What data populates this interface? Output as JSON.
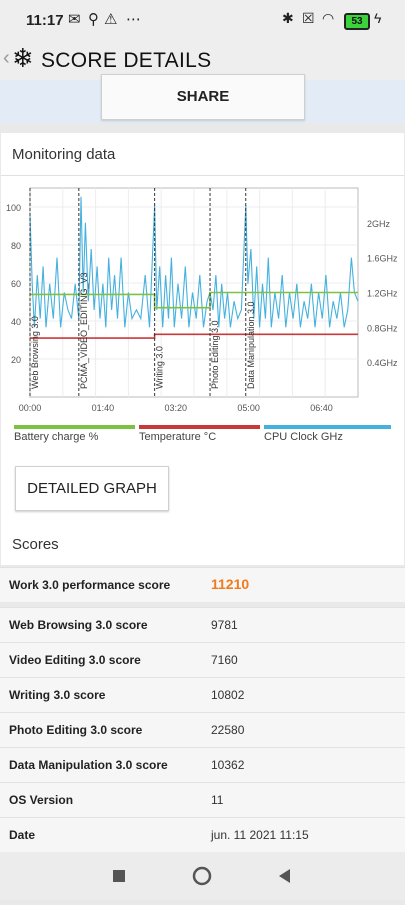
{
  "status_bar": {
    "time": "11:17",
    "battery": "53"
  },
  "app_bar": {
    "title": "SCORE DETAILS"
  },
  "share_label": "SHARE",
  "monitoring": {
    "title": "Monitoring data",
    "detailed_graph_label": "DETAILED GRAPH"
  },
  "chart_data": {
    "type": "line",
    "x_ticks": [
      "00:00",
      "01:40",
      "03:20",
      "05:00",
      "06:40"
    ],
    "y_left_ticks": [
      "100",
      "80",
      "60",
      "40",
      "20"
    ],
    "y_right_ticks": [
      "2GHz",
      "1.6GHz",
      "1.2GHz",
      "0.8GHz",
      "0.4GHz"
    ],
    "ylim_left": [
      0,
      110
    ],
    "ylim_right": [
      0,
      2.4
    ],
    "phase_markers": [
      {
        "label": "Web Browsing 3.0",
        "t": 0
      },
      {
        "label": "PCMA_VIDEO_EDITING_V3",
        "t": 67
      },
      {
        "label": "Writing 3.0",
        "t": 171
      },
      {
        "label": "Photo Editing 3.0",
        "t": 247
      },
      {
        "label": "Data Manipulation 3.0",
        "t": 296
      }
    ],
    "legend": [
      {
        "name": "Battery charge %",
        "color": "#7cc242"
      },
      {
        "name": "Temperature °C",
        "color": "#c83a3a"
      },
      {
        "name": "CPU Clock GHz",
        "color": "#45b1de"
      }
    ],
    "series": [
      {
        "name": "Battery charge %",
        "axis": "left",
        "points": [
          [
            0,
            54
          ],
          [
            171,
            54
          ],
          [
            171,
            47
          ],
          [
            247,
            47
          ],
          [
            247,
            55
          ],
          [
            450,
            55
          ]
        ]
      },
      {
        "name": "Temperature °C",
        "axis": "left",
        "points": [
          [
            0,
            31
          ],
          [
            171,
            31
          ],
          [
            171,
            33
          ],
          [
            450,
            33
          ]
        ]
      },
      {
        "name": "CPU Clock GHz",
        "axis": "right",
        "points": [
          [
            0,
            2.1
          ],
          [
            3,
            1.3
          ],
          [
            6,
            0.8
          ],
          [
            10,
            1.4
          ],
          [
            14,
            0.9
          ],
          [
            18,
            1.5
          ],
          [
            22,
            0.8
          ],
          [
            27,
            1.3
          ],
          [
            32,
            0.9
          ],
          [
            37,
            1.6
          ],
          [
            42,
            0.8
          ],
          [
            47,
            1.2
          ],
          [
            52,
            1.0
          ],
          [
            57,
            0.9
          ],
          [
            62,
            1.3
          ],
          [
            67,
            0.9
          ],
          [
            70,
            2.3
          ],
          [
            73,
            1.2
          ],
          [
            76,
            2.0
          ],
          [
            80,
            1.1
          ],
          [
            84,
            1.7
          ],
          [
            88,
            1.0
          ],
          [
            92,
            1.5
          ],
          [
            96,
            0.9
          ],
          [
            100,
            1.3
          ],
          [
            104,
            0.8
          ],
          [
            108,
            1.6
          ],
          [
            112,
            1.0
          ],
          [
            116,
            1.4
          ],
          [
            120,
            0.9
          ],
          [
            125,
            1.6
          ],
          [
            130,
            0.8
          ],
          [
            135,
            1.2
          ],
          [
            140,
            0.9
          ],
          [
            146,
            1.0
          ],
          [
            152,
            0.9
          ],
          [
            158,
            1.4
          ],
          [
            164,
            0.8
          ],
          [
            171,
            2.2
          ],
          [
            174,
            1.0
          ],
          [
            178,
            1.5
          ],
          [
            182,
            0.8
          ],
          [
            186,
            1.4
          ],
          [
            190,
            0.9
          ],
          [
            194,
            1.6
          ],
          [
            198,
            0.8
          ],
          [
            203,
            1.3
          ],
          [
            208,
            0.9
          ],
          [
            213,
            1.5
          ],
          [
            218,
            0.8
          ],
          [
            223,
            1.2
          ],
          [
            228,
            0.9
          ],
          [
            233,
            1.4
          ],
          [
            238,
            0.8
          ],
          [
            243,
            1.1
          ],
          [
            247,
            1.2
          ],
          [
            251,
            1.0
          ],
          [
            255,
            1.4
          ],
          [
            259,
            0.8
          ],
          [
            263,
            1.3
          ],
          [
            267,
            0.9
          ],
          [
            271,
            1.2
          ],
          [
            275,
            0.8
          ],
          [
            280,
            1.1
          ],
          [
            285,
            0.9
          ],
          [
            290,
            1.0
          ],
          [
            296,
            2.2
          ],
          [
            299,
            1.3
          ],
          [
            303,
            1.7
          ],
          [
            307,
            0.9
          ],
          [
            311,
            1.5
          ],
          [
            315,
            0.8
          ],
          [
            319,
            1.3
          ],
          [
            323,
            0.9
          ],
          [
            327,
            1.6
          ],
          [
            331,
            0.8
          ],
          [
            336,
            1.2
          ],
          [
            341,
            0.9
          ],
          [
            346,
            1.4
          ],
          [
            351,
            0.8
          ],
          [
            356,
            1.2
          ],
          [
            361,
            0.9
          ],
          [
            366,
            1.3
          ],
          [
            371,
            0.8
          ],
          [
            376,
            1.1
          ],
          [
            381,
            0.9
          ],
          [
            386,
            1.3
          ],
          [
            391,
            0.8
          ],
          [
            396,
            1.2
          ],
          [
            401,
            0.9
          ],
          [
            406,
            1.4
          ],
          [
            411,
            0.8
          ],
          [
            416,
            1.1
          ],
          [
            421,
            0.9
          ],
          [
            426,
            1.2
          ],
          [
            431,
            0.8
          ],
          [
            436,
            1.0
          ],
          [
            441,
            1.6
          ],
          [
            445,
            1.2
          ],
          [
            450,
            1.1
          ]
        ]
      }
    ]
  },
  "scores": {
    "title": "Scores",
    "rows": [
      {
        "label": "Work 3.0 performance score",
        "value": "11210"
      },
      {
        "label": "Web Browsing 3.0 score",
        "value": "9781"
      },
      {
        "label": "Video Editing 3.0 score",
        "value": "7160"
      },
      {
        "label": "Writing 3.0 score",
        "value": "10802"
      },
      {
        "label": "Photo Editing 3.0 score",
        "value": "22580"
      },
      {
        "label": "Data Manipulation 3.0 score",
        "value": "10362"
      },
      {
        "label": "OS Version",
        "value": "11"
      },
      {
        "label": "Date",
        "value": "jun. 11 2021 11:15"
      }
    ]
  }
}
